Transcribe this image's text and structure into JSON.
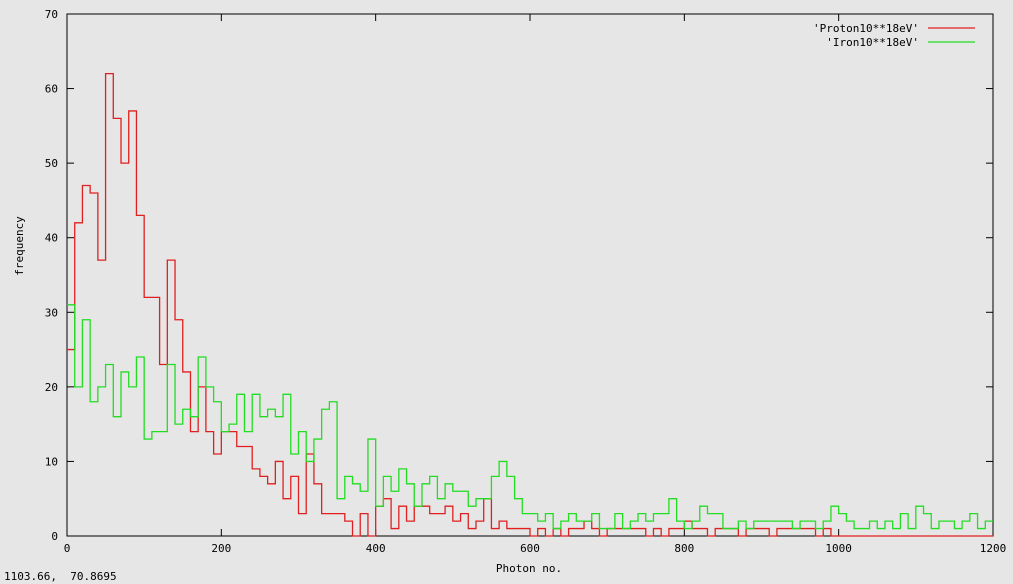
{
  "chart_data": {
    "type": "line",
    "style": "steps",
    "title": "",
    "xlabel": "Photon no.",
    "ylabel": "frequency",
    "xlim": [
      0,
      1200
    ],
    "ylim": [
      0,
      70
    ],
    "xticks": [
      "0",
      "200",
      "400",
      "600",
      "800",
      "1000",
      "1200"
    ],
    "yticks": [
      "0",
      "10",
      "20",
      "30",
      "40",
      "50",
      "60",
      "70"
    ],
    "grid": false,
    "legend_position": "top-right",
    "bin_width": 10,
    "series": [
      {
        "name": "'Proton10**18eV'",
        "color": "#e02020",
        "x": [
          0,
          10,
          20,
          30,
          40,
          50,
          60,
          70,
          80,
          90,
          100,
          110,
          120,
          130,
          140,
          150,
          160,
          170,
          180,
          190,
          200,
          210,
          220,
          230,
          240,
          250,
          260,
          270,
          280,
          290,
          300,
          310,
          320,
          330,
          340,
          350,
          360,
          370,
          380,
          390,
          400,
          410,
          420,
          430,
          440,
          450,
          460,
          470,
          480,
          490,
          500,
          510,
          520,
          530,
          540,
          550,
          560,
          570,
          580,
          590,
          600,
          610,
          620,
          630,
          640,
          650,
          660,
          670,
          680,
          690,
          700,
          710,
          720,
          730,
          740,
          750,
          760,
          770,
          780,
          790,
          800,
          810,
          820,
          830,
          840,
          850,
          860,
          870,
          880,
          890,
          900,
          910,
          920,
          930,
          940,
          950,
          960,
          970,
          980,
          990,
          1000,
          1010,
          1020,
          1030,
          1040,
          1050,
          1060,
          1070,
          1080,
          1090,
          1100,
          1110,
          1120,
          1130,
          1140,
          1150,
          1160,
          1170,
          1180,
          1190
        ],
        "values": [
          25,
          42,
          47,
          46,
          37,
          62,
          56,
          50,
          57,
          43,
          32,
          32,
          23,
          37,
          29,
          22,
          14,
          20,
          14,
          11,
          14,
          14,
          12,
          12,
          9,
          8,
          7,
          10,
          5,
          8,
          3,
          11,
          7,
          3,
          3,
          3,
          2,
          0,
          3,
          0,
          4,
          5,
          1,
          4,
          2,
          4,
          4,
          3,
          3,
          4,
          2,
          3,
          1,
          2,
          5,
          1,
          2,
          1,
          1,
          1,
          0,
          1,
          0,
          1,
          0,
          1,
          1,
          2,
          1,
          0,
          1,
          1,
          1,
          1,
          1,
          0,
          1,
          0,
          1,
          1,
          2,
          1,
          1,
          0,
          1,
          1,
          1,
          0,
          1,
          1,
          1,
          0,
          1,
          1,
          1,
          1,
          1,
          0,
          1,
          0,
          0,
          0,
          0,
          0,
          0,
          0,
          0,
          0,
          0,
          0,
          0,
          0,
          0,
          0,
          0,
          0,
          0,
          0,
          0,
          0
        ]
      },
      {
        "name": "'Iron10**18eV'",
        "color": "#22dd22",
        "x": [
          0,
          10,
          20,
          30,
          40,
          50,
          60,
          70,
          80,
          90,
          100,
          110,
          120,
          130,
          140,
          150,
          160,
          170,
          180,
          190,
          200,
          210,
          220,
          230,
          240,
          250,
          260,
          270,
          280,
          290,
          300,
          310,
          320,
          330,
          340,
          350,
          360,
          370,
          380,
          390,
          400,
          410,
          420,
          430,
          440,
          450,
          460,
          470,
          480,
          490,
          500,
          510,
          520,
          530,
          540,
          550,
          560,
          570,
          580,
          590,
          600,
          610,
          620,
          630,
          640,
          650,
          660,
          670,
          680,
          690,
          700,
          710,
          720,
          730,
          740,
          750,
          760,
          770,
          780,
          790,
          800,
          810,
          820,
          830,
          840,
          850,
          860,
          870,
          880,
          890,
          900,
          910,
          920,
          930,
          940,
          950,
          960,
          970,
          980,
          990,
          1000,
          1010,
          1020,
          1030,
          1040,
          1050,
          1060,
          1070,
          1080,
          1090,
          1100,
          1110,
          1120,
          1130,
          1140,
          1150,
          1160,
          1170,
          1180,
          1190
        ],
        "values": [
          31,
          20,
          29,
          18,
          20,
          23,
          16,
          22,
          20,
          24,
          13,
          14,
          14,
          23,
          15,
          17,
          16,
          24,
          20,
          18,
          14,
          15,
          19,
          14,
          19,
          16,
          17,
          16,
          19,
          11,
          14,
          10,
          13,
          17,
          18,
          5,
          8,
          7,
          6,
          13,
          4,
          8,
          6,
          9,
          7,
          4,
          7,
          8,
          5,
          7,
          6,
          6,
          4,
          5,
          5,
          8,
          10,
          8,
          5,
          3,
          3,
          2,
          3,
          1,
          2,
          3,
          2,
          2,
          3,
          1,
          1,
          3,
          1,
          2,
          3,
          2,
          3,
          3,
          5,
          2,
          1,
          2,
          4,
          3,
          3,
          1,
          1,
          2,
          1,
          2,
          2,
          2,
          2,
          2,
          1,
          2,
          2,
          1,
          2,
          4,
          3,
          2,
          1,
          1,
          2,
          1,
          2,
          1,
          3,
          1,
          4,
          3,
          1,
          2,
          2,
          1,
          2,
          3,
          1,
          2
        ]
      }
    ]
  },
  "status_readout": "1103.66,  70.8695"
}
